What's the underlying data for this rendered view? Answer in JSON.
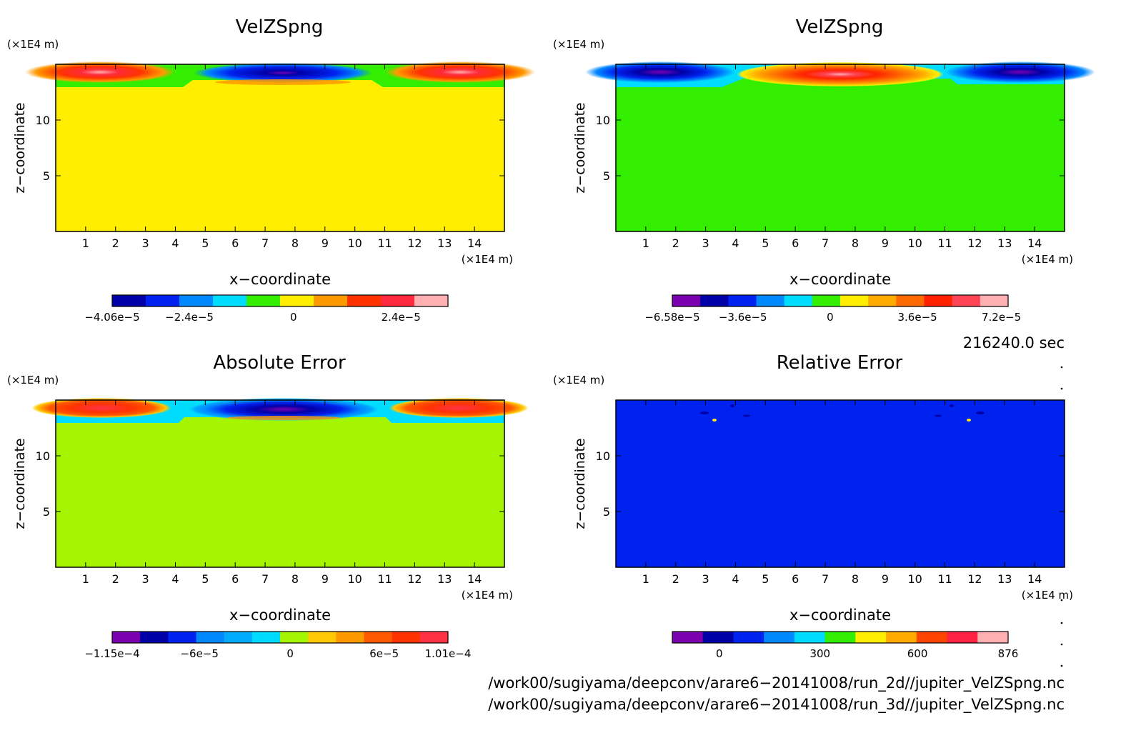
{
  "chart_data": [
    {
      "type": "heatmap",
      "title": "VelZSpng",
      "xlabel": "x−coordinate",
      "ylabel": "z−coordinate",
      "x_unit": "(×1E4 m)",
      "y_unit": "(×1E4 m)",
      "xlim": [
        0,
        15
      ],
      "ylim": [
        0,
        15
      ],
      "x_ticks": [
        1,
        2,
        3,
        4,
        5,
        6,
        7,
        8,
        9,
        10,
        11,
        12,
        13,
        14
      ],
      "y_ticks": [
        5,
        10
      ],
      "field": "sponge-layer vertical velocity: positive cores near x=0 and x=15, negative core near x=7.5 at z≈14; zero below z≈13",
      "colorbar": {
        "colors": [
          "#0000a8",
          "#0022ee",
          "#0088ff",
          "#00dcff",
          "#33ee00",
          "#ffee00",
          "#ff9900",
          "#ff3300",
          "#ff2b3c",
          "#ffb0b0"
        ],
        "labels": [
          {
            "text": "−4.06e−5",
            "pos": 0.0
          },
          {
            "text": "−2.4e−5",
            "pos": 0.23
          },
          {
            "text": "0",
            "pos": 0.54
          },
          {
            "text": "2.4e−5",
            "pos": 0.86
          }
        ]
      }
    },
    {
      "type": "heatmap",
      "title": "VelZSpng",
      "xlabel": "x−coordinate",
      "ylabel": "z−coordinate",
      "x_unit": "(×1E4 m)",
      "y_unit": "(×1E4 m)",
      "xlim": [
        0,
        15
      ],
      "ylim": [
        0,
        15
      ],
      "x_ticks": [
        1,
        2,
        3,
        4,
        5,
        6,
        7,
        8,
        9,
        10,
        11,
        12,
        13,
        14
      ],
      "y_ticks": [
        5,
        10
      ],
      "field": "sponge-layer vertical velocity: negative cores near x=0 and x=15, positive core near x=7.5 at z≈14; zero below z≈13",
      "colorbar": {
        "colors": [
          "#7a00b0",
          "#0000a8",
          "#0022ee",
          "#0088ff",
          "#00dcff",
          "#33ee00",
          "#ffee00",
          "#ffaa00",
          "#ff6a00",
          "#ff2200",
          "#ff4455",
          "#ffb0b0"
        ],
        "labels": [
          {
            "text": "−6.58e−5",
            "pos": 0.0
          },
          {
            "text": "−3.6e−5",
            "pos": 0.21
          },
          {
            "text": "0",
            "pos": 0.47
          },
          {
            "text": "3.6e−5",
            "pos": 0.73
          },
          {
            "text": "7.2e−5",
            "pos": 0.98
          }
        ]
      }
    },
    {
      "type": "heatmap",
      "title": "Absolute Error",
      "xlabel": "x−coordinate",
      "ylabel": "z−coordinate",
      "x_unit": "(×1E4 m)",
      "y_unit": "(×1E4 m)",
      "xlim": [
        0,
        15
      ],
      "ylim": [
        0,
        15
      ],
      "x_ticks": [
        1,
        2,
        3,
        4,
        5,
        6,
        7,
        8,
        9,
        10,
        11,
        12,
        13,
        14
      ],
      "y_ticks": [
        5,
        10
      ],
      "field": "difference: positive cores near x=0 and x=15, strong negative core near x=7.5 at z≈14; zero below z≈13",
      "colorbar": {
        "colors": [
          "#7a00b0",
          "#0000a8",
          "#0022ee",
          "#0088ff",
          "#00aaff",
          "#00dcff",
          "#a6f500",
          "#ffc800",
          "#ff9900",
          "#ff5a00",
          "#ff3300",
          "#ff3344"
        ],
        "labels": [
          {
            "text": "−1.15e−4",
            "pos": 0.0
          },
          {
            "text": "−6e−5",
            "pos": 0.26
          },
          {
            "text": "0",
            "pos": 0.53
          },
          {
            "text": "6e−5",
            "pos": 0.81
          },
          {
            "text": "1.01e−4",
            "pos": 1.0
          }
        ]
      }
    },
    {
      "type": "heatmap",
      "title": "Relative Error",
      "xlabel": "x−coordinate",
      "ylabel": "z−coordinate",
      "x_unit": "(×1E4 m)",
      "y_unit": "(×1E4 m)",
      "xlim": [
        0,
        15
      ],
      "ylim": [
        0,
        15
      ],
      "x_ticks": [
        1,
        2,
        3,
        4,
        5,
        6,
        7,
        8,
        9,
        10,
        11,
        12,
        13,
        14
      ],
      "y_ticks": [
        5,
        10
      ],
      "field": "nearly uniform ≈0 everywhere, a few small isolated spots near z≈13–14",
      "colorbar": {
        "colors": [
          "#7a00b0",
          "#0000a8",
          "#0022ee",
          "#0088ff",
          "#00dcff",
          "#33ee00",
          "#ffee00",
          "#ffaa00",
          "#ff4400",
          "#ff2244",
          "#ffb0b0"
        ],
        "labels": [
          {
            "text": "0",
            "pos": 0.14
          },
          {
            "text": "300",
            "pos": 0.44
          },
          {
            "text": "600",
            "pos": 0.73
          },
          {
            "text": "876",
            "pos": 1.0
          }
        ]
      }
    }
  ],
  "time_label": "216240.0 sec",
  "file_paths": [
    "/work00/sugiyama/deepconv/arare6−20141008/run_2d//jupiter_VelZSpng.nc",
    "/work00/sugiyama/deepconv/arare6−20141008/run_3d//jupiter_VelZSpng.nc"
  ]
}
